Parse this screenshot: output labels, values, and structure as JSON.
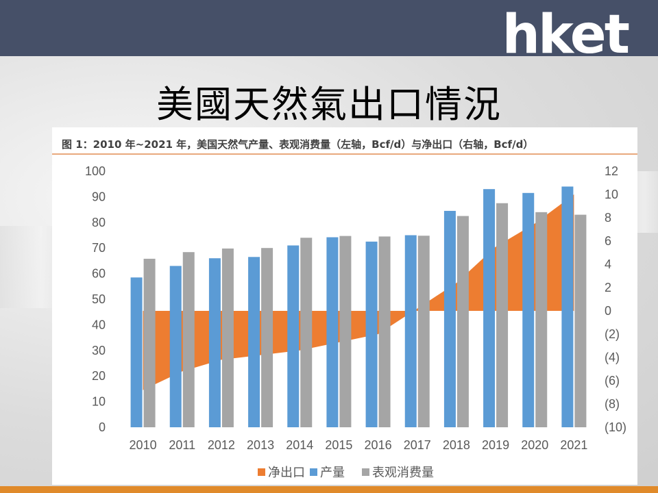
{
  "header": {
    "logo": "hket",
    "title": "美國天然氣出口情況"
  },
  "chart_data": {
    "type": "bar",
    "title": "图 1：2010 年~2021 年，美国天然气产量、表观消费量（左轴，Bcf/d）与净出口（右轴，Bcf/d）",
    "categories": [
      "2010",
      "2011",
      "2012",
      "2013",
      "2014",
      "2015",
      "2016",
      "2017",
      "2018",
      "2019",
      "2020",
      "2021"
    ],
    "series": [
      {
        "name": "净出口",
        "kind": "area",
        "axis": "right",
        "color": "#ed7d31",
        "values": [
          -6.8,
          -5.2,
          -4.2,
          -3.8,
          -3.4,
          -2.7,
          -2.0,
          0.2,
          2.4,
          5.5,
          7.5,
          10.0
        ]
      },
      {
        "name": "产量",
        "kind": "bar",
        "axis": "left",
        "color": "#5b9bd5",
        "values": [
          58.5,
          63,
          66,
          66.5,
          71,
          74.2,
          72.5,
          75,
          84.5,
          93,
          91.5,
          94
        ]
      },
      {
        "name": "表观消费量",
        "kind": "bar",
        "axis": "left",
        "color": "#a5a5a5",
        "values": [
          65.8,
          68.4,
          69.8,
          70,
          74,
          74.7,
          74.5,
          74.8,
          82.5,
          87.5,
          84,
          83
        ]
      }
    ],
    "y_left": {
      "min": 0,
      "max": 100,
      "ticks": [
        "100",
        "90",
        "80",
        "70",
        "60",
        "50",
        "40",
        "30",
        "20",
        "10",
        "0"
      ]
    },
    "y_right": {
      "min": -10,
      "max": 12,
      "ticks": [
        "12",
        "10",
        "8",
        "6",
        "4",
        "2",
        "0",
        "(2)",
        "(4)",
        "(6)",
        "(8)",
        "(10)"
      ]
    },
    "legend": "bottom-center",
    "grid": false
  }
}
